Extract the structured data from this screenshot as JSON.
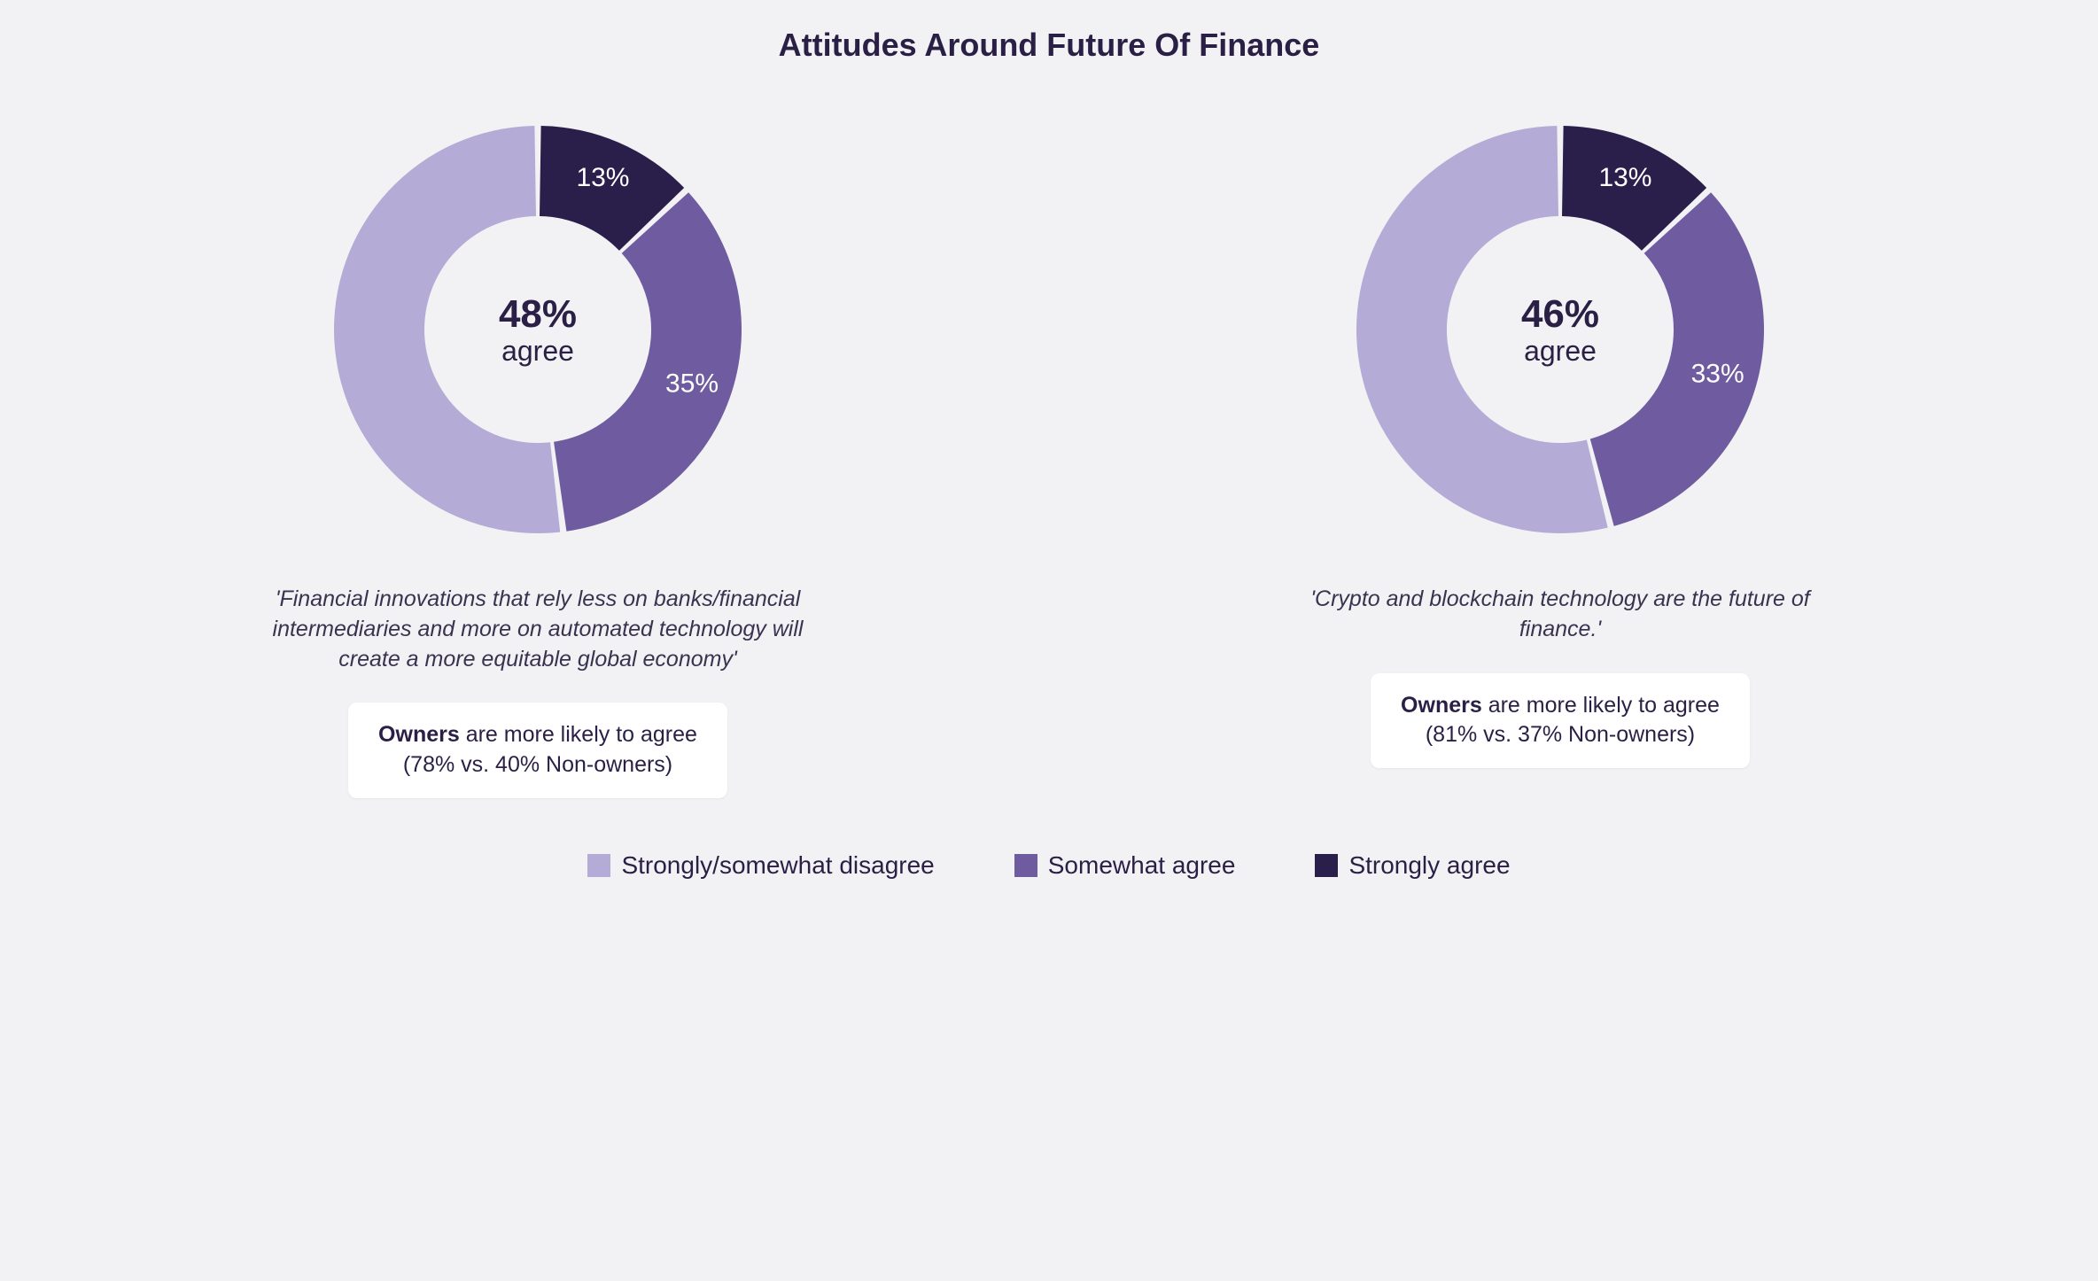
{
  "title": "Attitudes Around Future Of Finance",
  "background_color": "#f2f2f4",
  "title_fontsize": 36,
  "charts": [
    {
      "type": "donut",
      "center_pct": "48%",
      "center_word": "agree",
      "statement": "'Financial innovations that rely less on banks/financial intermediaries and more on automated technology will create a more equitable global economy'",
      "note_bold": "Owners",
      "note_rest_line1": " are more likely to agree",
      "note_line2": "(78% vs. 40% Non-owners)",
      "outer_radius": 230,
      "inner_radius": 128,
      "gap_deg": 1.8,
      "slices": [
        {
          "key": "strongly_agree",
          "value": 13,
          "label": "13%",
          "color": "#2a1e4b",
          "label_r": 185
        },
        {
          "key": "somewhat_agree",
          "value": 35,
          "label": "35%",
          "color": "#6f5ba0",
          "label_r": 185
        },
        {
          "key": "disagree",
          "value": 52,
          "label": "",
          "color": "#b5abd7",
          "label_r": 185
        }
      ]
    },
    {
      "type": "donut",
      "center_pct": "46%",
      "center_word": "agree",
      "statement": "'Crypto and blockchain technology are the future of finance.'",
      "note_bold": "Owners",
      "note_rest_line1": " are more likely to agree",
      "note_line2": "(81% vs. 37% Non-owners)",
      "outer_radius": 230,
      "inner_radius": 128,
      "gap_deg": 1.8,
      "slices": [
        {
          "key": "strongly_agree",
          "value": 13,
          "label": "13%",
          "color": "#2a1e4b",
          "label_r": 185
        },
        {
          "key": "somewhat_agree",
          "value": 33,
          "label": "33%",
          "color": "#6f5ba0",
          "label_r": 185
        },
        {
          "key": "disagree",
          "value": 54,
          "label": "",
          "color": "#b5abd7",
          "label_r": 185
        }
      ]
    }
  ],
  "legend": [
    {
      "label": "Strongly/somewhat disagree",
      "color": "#b5abd7"
    },
    {
      "label": "Somewhat agree",
      "color": "#6f5ba0"
    },
    {
      "label": "Strongly agree",
      "color": "#2a1e4b"
    }
  ]
}
